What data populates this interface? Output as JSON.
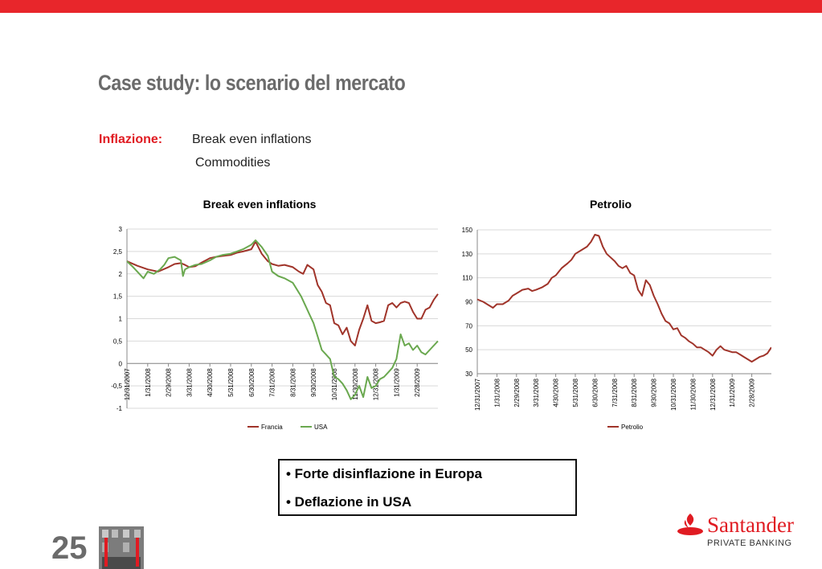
{
  "brand_color": "#e8262b",
  "slide": {
    "title": "Case study: lo scenario del mercato",
    "inflazione_label": "Inflazione:",
    "items": [
      "Break even inflations",
      "Commodities"
    ],
    "bullets": [
      "• Forte disinflazione in Europa",
      "• Deflazione in USA"
    ],
    "page_number": "25"
  },
  "logo": {
    "name": "Santander",
    "subtitle": "PRIVATE BANKING",
    "icon": "santander-flame-icon"
  },
  "chart_data": [
    {
      "type": "line",
      "title": "Break even inflations",
      "xlabel": "",
      "ylabel": "",
      "ylim": [
        -1,
        3
      ],
      "yticks": [
        "3",
        "2,5",
        "2",
        "1,5",
        "1",
        "0,5",
        "0",
        "-0,5",
        "-1"
      ],
      "xticks": [
        "12/31/2007",
        "1/31/2008",
        "2/29/2008",
        "3/31/2008",
        "4/30/2008",
        "5/31/2008",
        "6/30/2008",
        "7/31/2008",
        "8/31/2008",
        "9/30/2008",
        "10/31/2008",
        "11/30/2008",
        "12/31/2008",
        "1/31/2009",
        "2/28/2009"
      ],
      "legend_position": "bottom",
      "grid": true,
      "series": [
        {
          "name": "Francia",
          "color": "#a0342a",
          "x": [
            0,
            0.5,
            1,
            1.5,
            2,
            2.3,
            2.6,
            2.8,
            3,
            3.3,
            3.6,
            4,
            4.3,
            4.6,
            5,
            5.3,
            5.6,
            6,
            6.2,
            6.5,
            6.8,
            7,
            7.3,
            7.6,
            8,
            8.3,
            8.5,
            8.7,
            9,
            9.2,
            9.4,
            9.6,
            9.8,
            10,
            10.2,
            10.4,
            10.6,
            10.8,
            11,
            11.2,
            11.4,
            11.6,
            11.8,
            12,
            12.2,
            12.4,
            12.6,
            12.8,
            13,
            13.2,
            13.4,
            13.6,
            13.8,
            14,
            14.2,
            14.4,
            14.6,
            14.8,
            15
          ],
          "values": [
            2.28,
            2.18,
            2.1,
            2.05,
            2.15,
            2.22,
            2.24,
            2.2,
            2.15,
            2.17,
            2.25,
            2.35,
            2.38,
            2.4,
            2.42,
            2.47,
            2.5,
            2.55,
            2.72,
            2.45,
            2.28,
            2.22,
            2.18,
            2.2,
            2.15,
            2.05,
            2.0,
            2.2,
            2.1,
            1.75,
            1.6,
            1.35,
            1.3,
            0.9,
            0.85,
            0.65,
            0.8,
            0.5,
            0.4,
            0.75,
            1.0,
            1.3,
            0.95,
            0.9,
            0.92,
            0.95,
            1.3,
            1.35,
            1.25,
            1.35,
            1.38,
            1.35,
            1.15,
            1.0,
            1.0,
            1.2,
            1.25,
            1.42,
            1.55
          ]
        },
        {
          "name": "USA",
          "color": "#6aa84f",
          "x": [
            0,
            0.3,
            0.6,
            0.8,
            1,
            1.3,
            1.6,
            1.8,
            2,
            2.3,
            2.6,
            2.7,
            2.8,
            3,
            3.3,
            3.6,
            4,
            4.3,
            4.6,
            5,
            5.3,
            5.6,
            6,
            6.2,
            6.5,
            6.8,
            7,
            7.3,
            7.6,
            8,
            8.2,
            8.4,
            8.6,
            8.8,
            9,
            9.2,
            9.4,
            9.6,
            9.8,
            10,
            10.2,
            10.4,
            10.6,
            10.8,
            11,
            11.2,
            11.4,
            11.6,
            11.8,
            12,
            12.2,
            12.4,
            12.6,
            12.8,
            13,
            13.2,
            13.4,
            13.6,
            13.8,
            14,
            14.2,
            14.4,
            14.6,
            14.8,
            15
          ],
          "values": [
            2.28,
            2.15,
            2.0,
            1.9,
            2.05,
            2.0,
            2.1,
            2.2,
            2.35,
            2.38,
            2.3,
            1.95,
            2.1,
            2.15,
            2.2,
            2.22,
            2.3,
            2.38,
            2.42,
            2.45,
            2.5,
            2.55,
            2.65,
            2.75,
            2.6,
            2.4,
            2.05,
            1.95,
            1.9,
            1.8,
            1.65,
            1.5,
            1.3,
            1.1,
            0.9,
            0.6,
            0.3,
            0.2,
            0.1,
            -0.3,
            -0.35,
            -0.45,
            -0.6,
            -0.8,
            -0.7,
            -0.5,
            -0.75,
            -0.3,
            -0.55,
            -0.5,
            -0.35,
            -0.3,
            -0.2,
            -0.1,
            0.1,
            0.65,
            0.4,
            0.45,
            0.3,
            0.4,
            0.25,
            0.2,
            0.3,
            0.4,
            0.5
          ]
        }
      ]
    },
    {
      "type": "line",
      "title": "Petrolio",
      "xlabel": "",
      "ylabel": "",
      "ylim": [
        30,
        150
      ],
      "yticks": [
        "150",
        "130",
        "110",
        "90",
        "70",
        "50",
        "30"
      ],
      "xticks": [
        "12/31/2007",
        "1/31/2008",
        "2/29/2008",
        "3/31/2008",
        "4/30/2008",
        "5/31/2008",
        "6/30/2008",
        "7/31/2008",
        "8/31/2008",
        "9/30/2008",
        "10/31/2008",
        "11/30/2008",
        "12/31/2008",
        "1/31/2009",
        "2/28/2009"
      ],
      "legend_position": "bottom",
      "grid": true,
      "series": [
        {
          "name": "Petrolio",
          "color": "#a0342a",
          "x": [
            0,
            0.3,
            0.6,
            0.8,
            1,
            1.3,
            1.6,
            1.8,
            2,
            2.3,
            2.6,
            2.8,
            3,
            3.3,
            3.6,
            3.8,
            4,
            4.3,
            4.6,
            4.8,
            5,
            5.3,
            5.6,
            5.8,
            6,
            6.2,
            6.4,
            6.6,
            6.8,
            7,
            7.2,
            7.4,
            7.6,
            7.8,
            8,
            8.2,
            8.4,
            8.6,
            8.8,
            9,
            9.2,
            9.4,
            9.6,
            9.8,
            10,
            10.2,
            10.4,
            10.6,
            10.8,
            11,
            11.2,
            11.4,
            11.6,
            11.8,
            12,
            12.2,
            12.4,
            12.6,
            12.8,
            13,
            13.2,
            13.4,
            13.6,
            13.8,
            14,
            14.2,
            14.4,
            14.6,
            14.8,
            15
          ],
          "values": [
            92,
            90,
            87,
            85,
            88,
            88,
            91,
            95,
            97,
            100,
            101,
            99,
            100,
            102,
            105,
            110,
            112,
            118,
            122,
            125,
            130,
            133,
            136,
            140,
            146,
            145,
            136,
            130,
            127,
            124,
            120,
            118,
            120,
            114,
            112,
            100,
            95,
            108,
            104,
            95,
            88,
            80,
            74,
            72,
            67,
            68,
            62,
            60,
            57,
            55,
            52,
            52,
            50,
            48,
            45,
            50,
            53,
            50,
            49,
            48,
            48,
            46,
            44,
            42,
            40,
            42,
            44,
            45,
            47,
            52
          ]
        }
      ]
    }
  ]
}
